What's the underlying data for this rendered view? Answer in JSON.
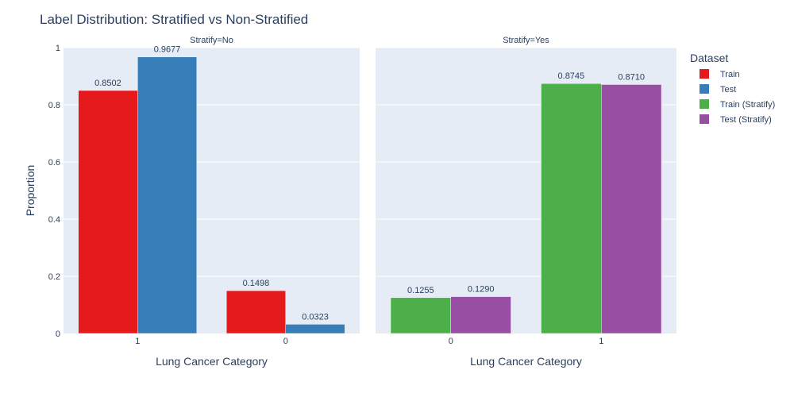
{
  "chart_data": {
    "type": "bar",
    "title": "Label Distribution: Stratified vs Non-Stratified",
    "ylabel": "Proportion",
    "ylim": [
      0,
      1
    ],
    "yticks": [
      0,
      0.2,
      0.4,
      0.6,
      0.8,
      1
    ],
    "yticklabels": [
      "0",
      "0.2",
      "0.4",
      "0.6",
      "0.8",
      "1"
    ],
    "legend": {
      "title": "Dataset",
      "placement": "right",
      "items": [
        {
          "name": "Train",
          "color": "#e41a1c"
        },
        {
          "name": "Test",
          "color": "#377eb8"
        },
        {
          "name": "Train (Stratify)",
          "color": "#4daf4a"
        },
        {
          "name": "Test (Stratify)",
          "color": "#984ea3"
        }
      ]
    },
    "facets": [
      {
        "title": "Stratify=No",
        "xlabel": "Lung Cancer Category",
        "categories": [
          "1",
          "0"
        ],
        "series": [
          {
            "name": "Train",
            "color": "#e41a1c",
            "values": [
              0.8502,
              0.1498
            ],
            "labels": [
              "0.8502",
              "0.1498"
            ]
          },
          {
            "name": "Test",
            "color": "#377eb8",
            "values": [
              0.9677,
              0.0323
            ],
            "labels": [
              "0.9677",
              "0.0323"
            ]
          }
        ]
      },
      {
        "title": "Stratify=Yes",
        "xlabel": "Lung Cancer Category",
        "categories": [
          "0",
          "1"
        ],
        "series": [
          {
            "name": "Train (Stratify)",
            "color": "#4daf4a",
            "values": [
              0.1255,
              0.8745
            ],
            "labels": [
              "0.1255",
              "0.8745"
            ]
          },
          {
            "name": "Test (Stratify)",
            "color": "#984ea3",
            "values": [
              0.129,
              0.871
            ],
            "labels": [
              "0.1290",
              "0.8710"
            ]
          }
        ]
      }
    ]
  }
}
